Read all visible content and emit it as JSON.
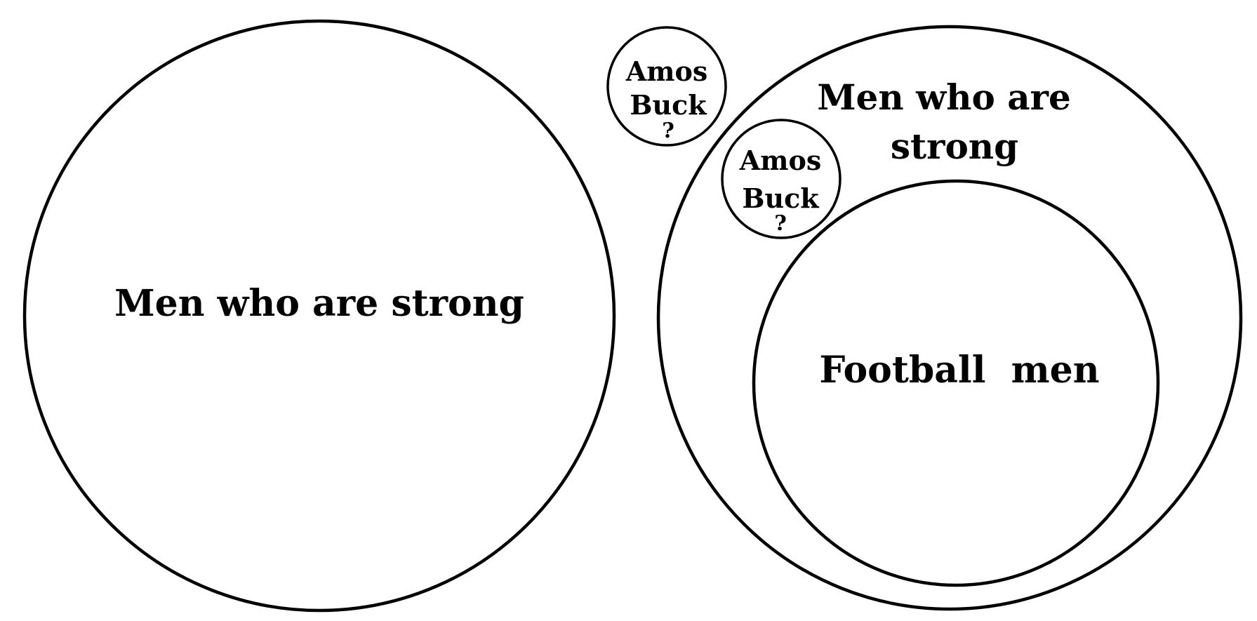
{
  "diagram": {
    "left": {
      "label": "Men who are strong"
    },
    "right": {
      "outer_label_line1": "Men who are",
      "outer_label_line2": "strong",
      "inner_label": "Football  men"
    },
    "outside_point": {
      "line1": "Amos",
      "line2": "Buck",
      "mark": "?"
    },
    "inside_point": {
      "line1": "Amos",
      "line2": "Buck",
      "mark": "?"
    }
  }
}
